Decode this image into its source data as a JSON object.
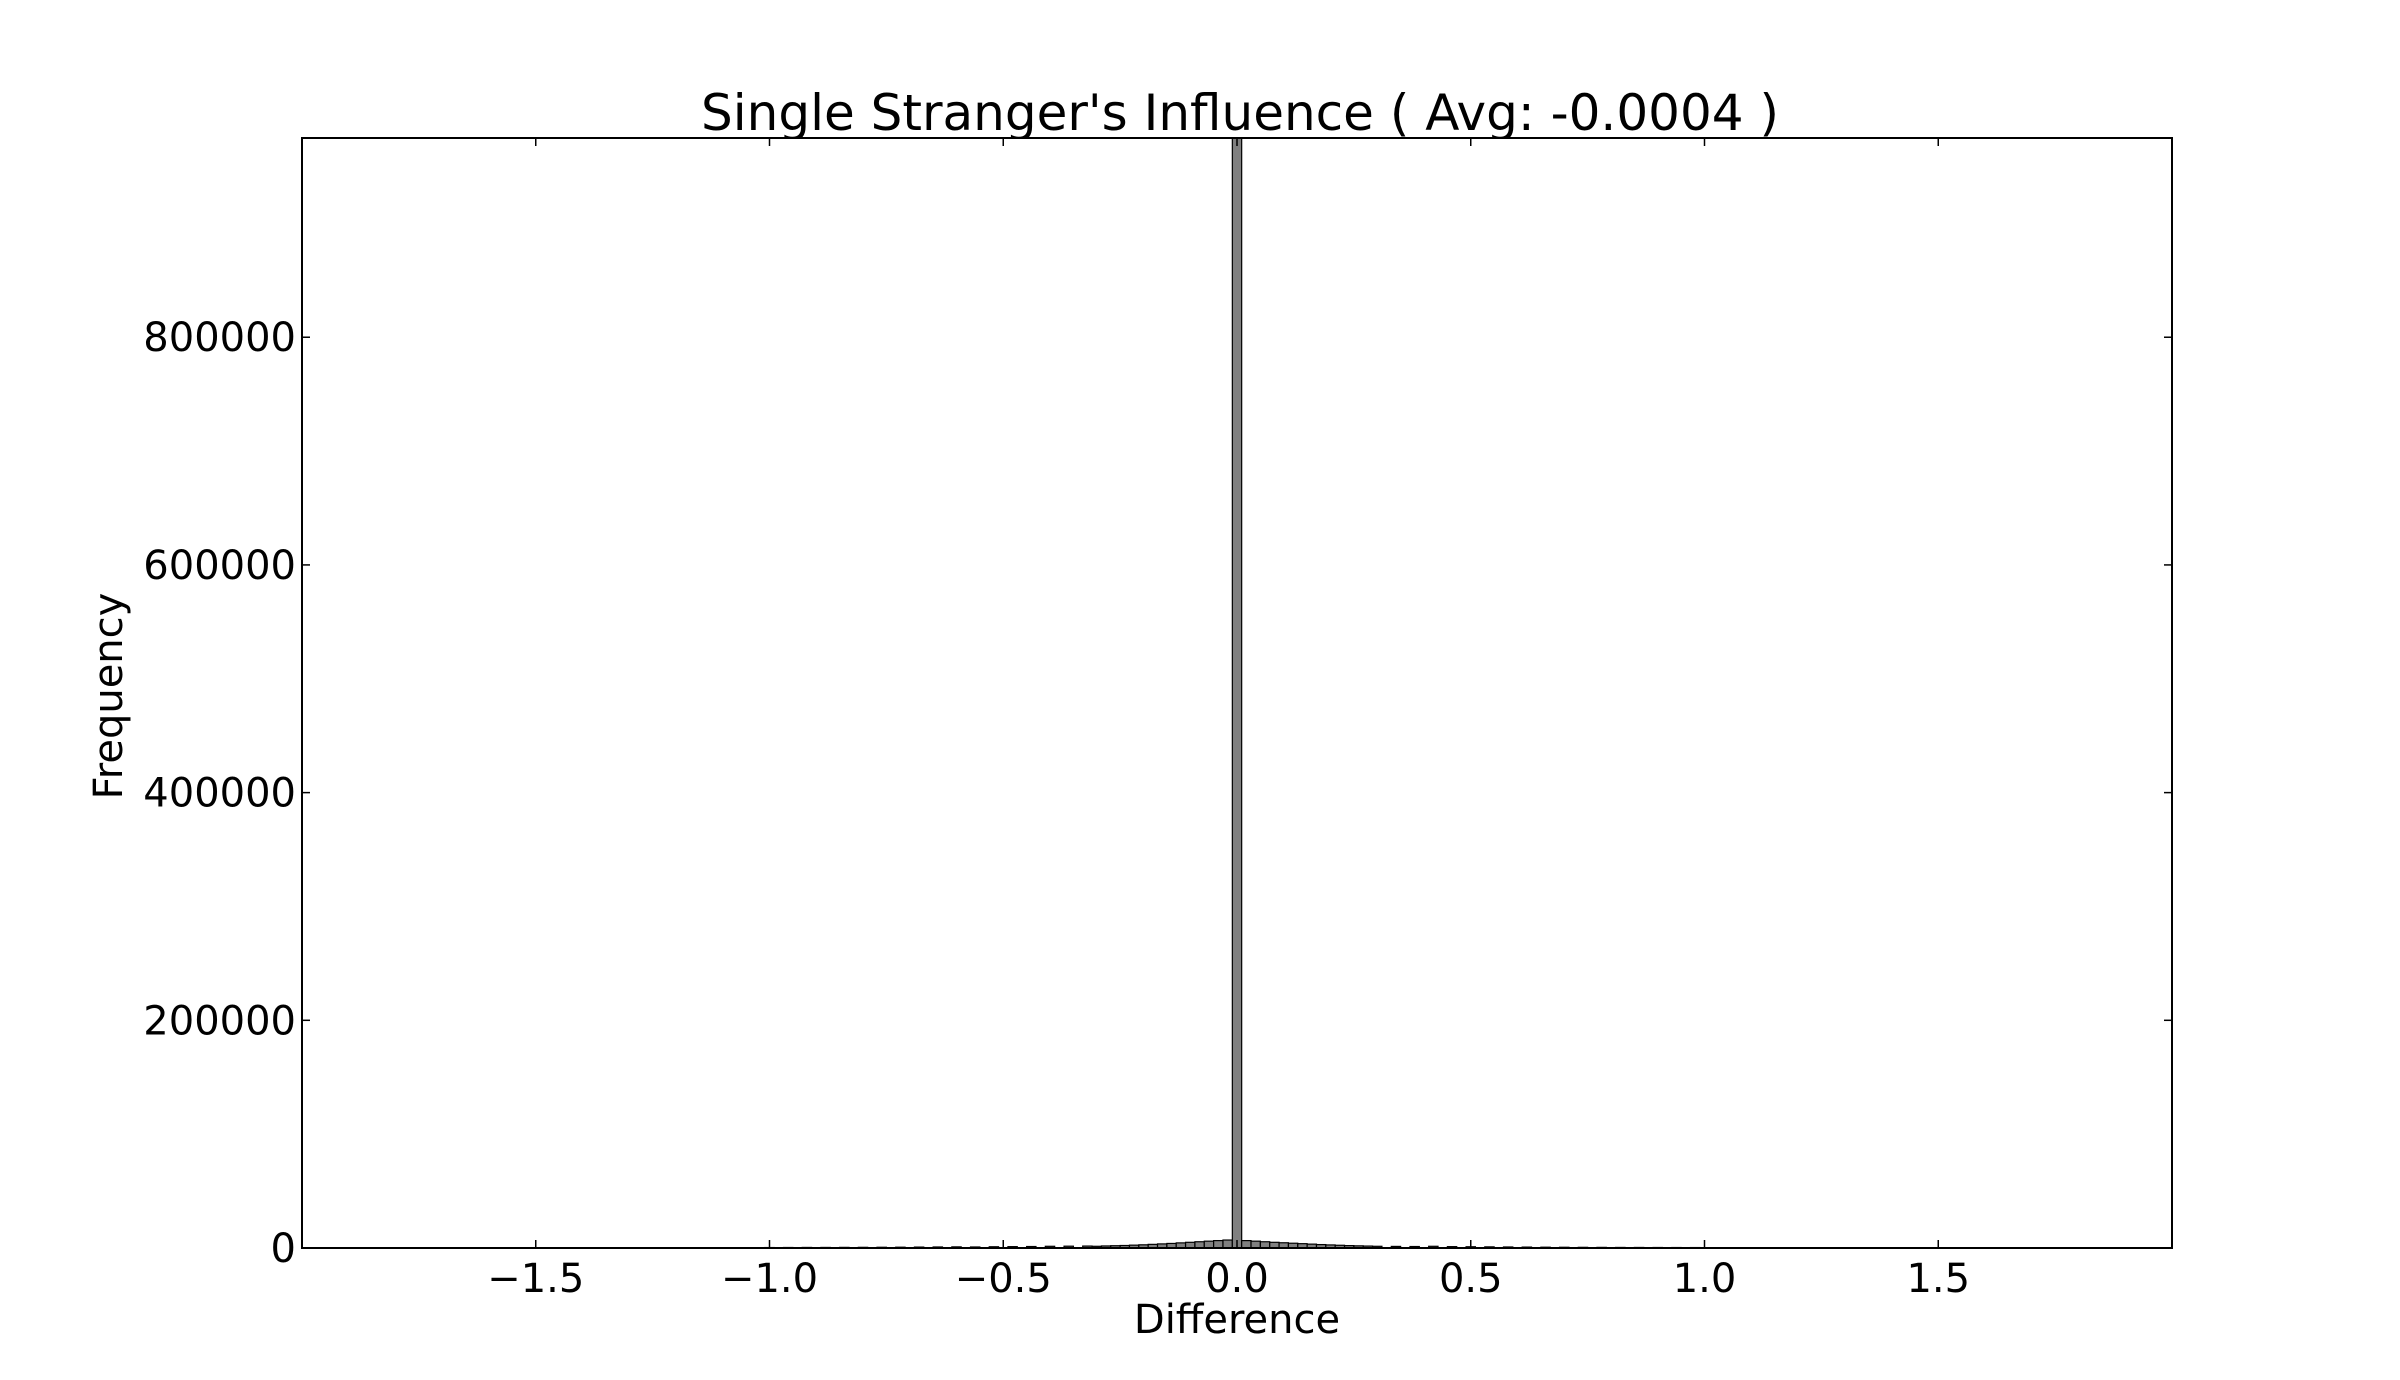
{
  "chart_data": {
    "type": "bar",
    "title": "Single Stranger's Influence ( Avg: -0.0004 )",
    "xlabel": "Difference",
    "ylabel": "Frequency",
    "xlim": [
      -2.0,
      2.0
    ],
    "ylim": [
      0,
      975000
    ],
    "xticks": [
      -1.5,
      -1.0,
      -0.5,
      0.0,
      0.5,
      1.0,
      1.5
    ],
    "xtick_labels": [
      "−1.5",
      "−1.0",
      "−0.5",
      "0.0",
      "0.5",
      "1.0",
      "1.5"
    ],
    "yticks": [
      0,
      200000,
      400000,
      600000,
      800000
    ],
    "ytick_labels": [
      "0",
      "200000",
      "400000",
      "600000",
      "800000"
    ],
    "grid": false,
    "bar_color": "#808080",
    "edge_color": "#000000",
    "bin_width": 0.02,
    "bins": [
      {
        "x": -1.0,
        "count": 400
      },
      {
        "x": -0.96,
        "count": 450
      },
      {
        "x": -0.92,
        "count": 500
      },
      {
        "x": -0.88,
        "count": 500
      },
      {
        "x": -0.84,
        "count": 550
      },
      {
        "x": -0.8,
        "count": 600
      },
      {
        "x": -0.76,
        "count": 650
      },
      {
        "x": -0.72,
        "count": 700
      },
      {
        "x": -0.68,
        "count": 800
      },
      {
        "x": -0.64,
        "count": 900
      },
      {
        "x": -0.6,
        "count": 1000
      },
      {
        "x": -0.56,
        "count": 900
      },
      {
        "x": -0.52,
        "count": 1100
      },
      {
        "x": -0.48,
        "count": 1200
      },
      {
        "x": -0.44,
        "count": 1300
      },
      {
        "x": -0.4,
        "count": 1500
      },
      {
        "x": -0.36,
        "count": 1600
      },
      {
        "x": -0.32,
        "count": 1700
      },
      {
        "x": -0.3,
        "count": 1500
      },
      {
        "x": -0.28,
        "count": 1800
      },
      {
        "x": -0.26,
        "count": 2000
      },
      {
        "x": -0.24,
        "count": 2200
      },
      {
        "x": -0.22,
        "count": 2500
      },
      {
        "x": -0.2,
        "count": 2800
      },
      {
        "x": -0.18,
        "count": 3200
      },
      {
        "x": -0.16,
        "count": 3600
      },
      {
        "x": -0.14,
        "count": 4000
      },
      {
        "x": -0.12,
        "count": 4500
      },
      {
        "x": -0.1,
        "count": 5000
      },
      {
        "x": -0.08,
        "count": 5500
      },
      {
        "x": -0.06,
        "count": 6000
      },
      {
        "x": -0.04,
        "count": 6500
      },
      {
        "x": -0.02,
        "count": 7000
      },
      {
        "x": 0.0,
        "count": 975000
      },
      {
        "x": 0.02,
        "count": 6500
      },
      {
        "x": 0.04,
        "count": 6000
      },
      {
        "x": 0.06,
        "count": 5500
      },
      {
        "x": 0.08,
        "count": 5000
      },
      {
        "x": 0.1,
        "count": 4600
      },
      {
        "x": 0.12,
        "count": 4200
      },
      {
        "x": 0.14,
        "count": 3800
      },
      {
        "x": 0.16,
        "count": 3400
      },
      {
        "x": 0.18,
        "count": 3000
      },
      {
        "x": 0.2,
        "count": 2700
      },
      {
        "x": 0.22,
        "count": 2400
      },
      {
        "x": 0.24,
        "count": 2100
      },
      {
        "x": 0.26,
        "count": 1900
      },
      {
        "x": 0.28,
        "count": 1700
      },
      {
        "x": 0.3,
        "count": 1500
      },
      {
        "x": 0.34,
        "count": 1400
      },
      {
        "x": 0.38,
        "count": 1300
      },
      {
        "x": 0.42,
        "count": 1500
      },
      {
        "x": 0.46,
        "count": 1200
      },
      {
        "x": 0.5,
        "count": 1100
      },
      {
        "x": 0.54,
        "count": 1000
      },
      {
        "x": 0.58,
        "count": 900
      },
      {
        "x": 0.62,
        "count": 800
      },
      {
        "x": 0.66,
        "count": 700
      },
      {
        "x": 0.7,
        "count": 650
      },
      {
        "x": 0.74,
        "count": 600
      },
      {
        "x": 0.78,
        "count": 550
      },
      {
        "x": 0.82,
        "count": 500
      },
      {
        "x": 0.86,
        "count": 480
      },
      {
        "x": 0.9,
        "count": 450
      },
      {
        "x": 0.94,
        "count": 420
      },
      {
        "x": 0.98,
        "count": 400
      }
    ]
  }
}
